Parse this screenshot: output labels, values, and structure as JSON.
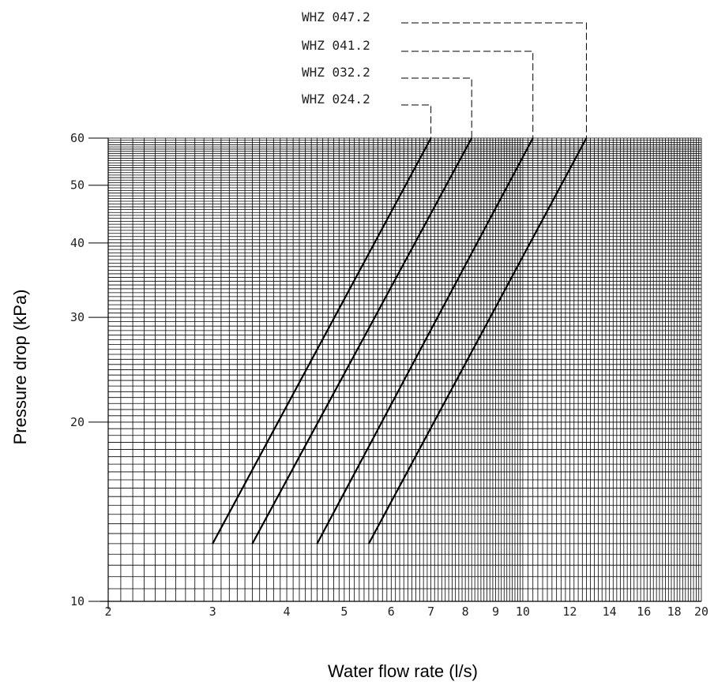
{
  "chart_data": {
    "type": "line",
    "title": "",
    "xlabel": "Water flow rate (l/s)",
    "ylabel": "Pressure drop (kPa)",
    "xscale": "log",
    "yscale": "log",
    "xlim": [
      2,
      20
    ],
    "ylim": [
      10,
      60
    ],
    "grid": true,
    "xticks": [
      2,
      3,
      4,
      5,
      6,
      7,
      8,
      9,
      10,
      12,
      14,
      16,
      18,
      20
    ],
    "xtick_labels": [
      "2",
      "3",
      "4",
      "5",
      "6",
      "7",
      "8",
      "9",
      "10",
      "12",
      "14",
      "16",
      "18",
      "20"
    ],
    "yticks": [
      10,
      20,
      30,
      40,
      50,
      60
    ],
    "ytick_labels": [
      "10",
      "20",
      "30",
      "40",
      "50",
      "60"
    ],
    "legend": "top, labels with dashed leaders",
    "line_color": "#000000",
    "grid_color": "#000000",
    "series": [
      {
        "name": "WHZ 024.2",
        "x": [
          3.0,
          7.0
        ],
        "y": [
          12.5,
          60
        ]
      },
      {
        "name": "WHZ 032.2",
        "x": [
          3.5,
          8.2
        ],
        "y": [
          12.5,
          60
        ]
      },
      {
        "name": "WHZ 041.2",
        "x": [
          4.5,
          10.4
        ],
        "y": [
          12.5,
          60
        ]
      },
      {
        "name": "WHZ 047.2",
        "x": [
          5.5,
          12.8
        ],
        "y": [
          12.5,
          60
        ]
      }
    ]
  }
}
